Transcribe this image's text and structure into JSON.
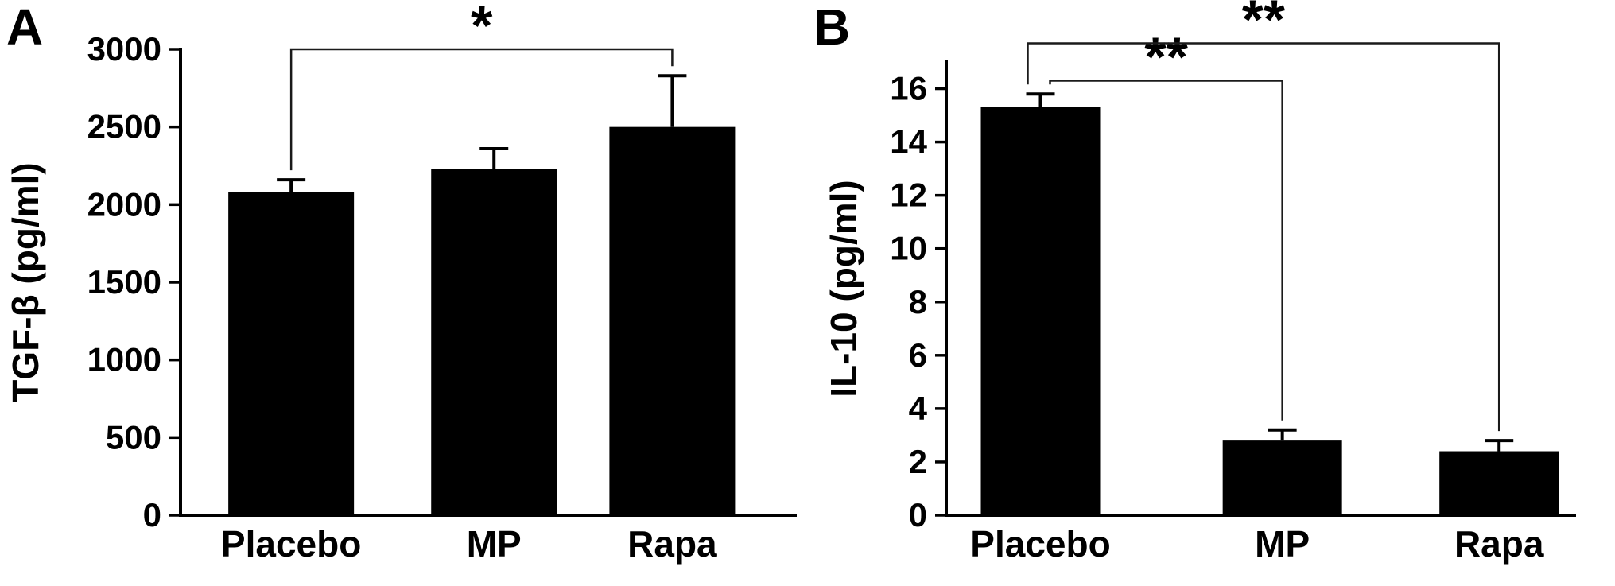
{
  "figure": {
    "background": "#ffffff",
    "axis_color": "#000000",
    "bracket_color": "#1a1a1a"
  },
  "chart_data": [
    {
      "type": "bar",
      "panel_label": "A",
      "title": "",
      "xlabel": "",
      "ylabel": "TGF-β (pg/ml)",
      "categories": [
        "Placebo",
        "MP",
        "Rapa"
      ],
      "values": [
        2080,
        2230,
        2500
      ],
      "errors_plus": [
        80,
        130,
        330
      ],
      "ylim": [
        0,
        3000
      ],
      "yticks": [
        0,
        500,
        1000,
        1500,
        2000,
        2500,
        3000
      ],
      "bar_color": "#000000",
      "grid": "off",
      "legend": "none",
      "significance": [
        {
          "from": "Placebo",
          "to": "Rapa",
          "label": "*",
          "y": 3000
        }
      ]
    },
    {
      "type": "bar",
      "panel_label": "B",
      "title": "",
      "xlabel": "",
      "ylabel": "IL-10 (pg/ml)",
      "categories": [
        "Placebo",
        "MP",
        "Rapa"
      ],
      "values": [
        15.3,
        2.8,
        2.4
      ],
      "errors_plus": [
        0.5,
        0.4,
        0.4
      ],
      "ylim": [
        0,
        17
      ],
      "yticks": [
        0,
        2,
        4,
        6,
        8,
        10,
        12,
        14,
        16
      ],
      "bar_color": "#000000",
      "grid": "off",
      "legend": "none",
      "significance": [
        {
          "from": "Placebo",
          "to": "MP",
          "label": "**",
          "y": 16.3
        },
        {
          "from": "Placebo",
          "to": "Rapa",
          "label": "**",
          "y": 17.7
        }
      ]
    }
  ]
}
